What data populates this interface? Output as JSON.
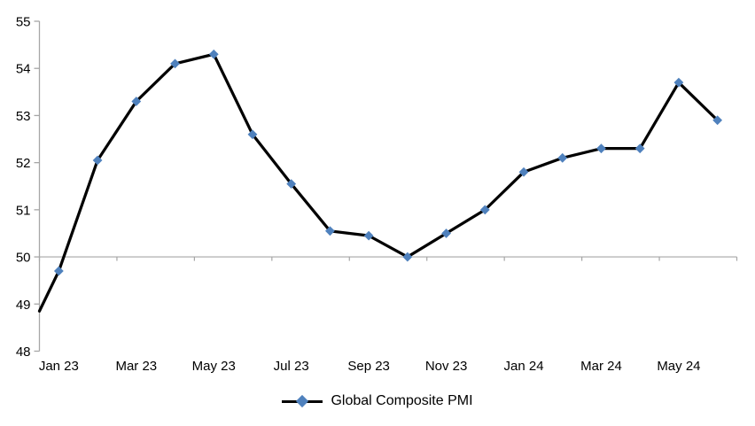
{
  "chart_data": {
    "type": "line",
    "title": "",
    "series_name": "Global Composite PMI",
    "categories": [
      "Jan 23",
      "Feb 23",
      "Mar 23",
      "Apr 23",
      "May 23",
      "Jun 23",
      "Jul 23",
      "Aug 23",
      "Sep 23",
      "Oct 23",
      "Nov 23",
      "Dec 23",
      "Jan 24",
      "Feb 24",
      "Mar 24",
      "Apr 24",
      "May 24",
      "Jun 24"
    ],
    "values": [
      49.7,
      52.05,
      53.3,
      54.1,
      54.3,
      52.6,
      51.55,
      50.55,
      50.45,
      50.0,
      50.5,
      51.0,
      51.8,
      52.1,
      52.3,
      52.3,
      53.7,
      52.9
    ],
    "leading_edge_value": 48.85,
    "x_tick_labels": [
      "Jan 23",
      "Mar 23",
      "May 23",
      "Jul 23",
      "Sep 23",
      "Nov 23",
      "Jan 24",
      "Mar 24",
      "May 24"
    ],
    "x_label_every": 2,
    "y_ticks": [
      48,
      49,
      50,
      51,
      52,
      53,
      54,
      55
    ],
    "ylim": [
      48,
      55
    ],
    "xlabel": "",
    "ylabel": "",
    "grid": "off",
    "category_axis_crosses_at": 50,
    "legend_position": "bottom-center",
    "marker_shape": "diamond",
    "colors": {
      "line": "#000000",
      "marker": "#4F81BD",
      "axis": "#A6A6A6",
      "text": "#000000",
      "background": "#FFFFFF"
    }
  }
}
